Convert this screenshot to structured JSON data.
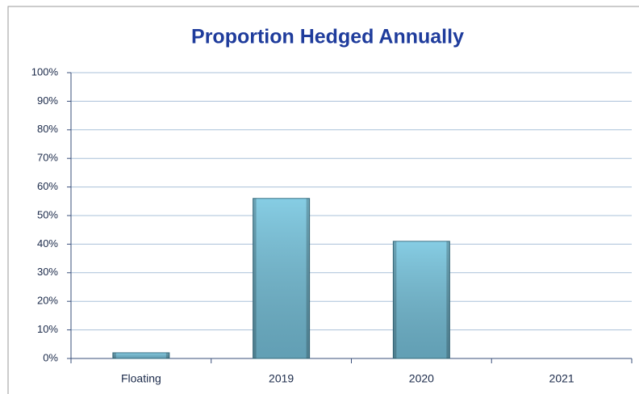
{
  "chart_data": {
    "type": "bar",
    "title": "Proportion Hedged Annually",
    "categories": [
      "Floating",
      "2019",
      "2020",
      "2021"
    ],
    "values": [
      2,
      56,
      41,
      0
    ],
    "color": "#86cde4",
    "ylim": [
      0,
      100
    ],
    "yticks": [
      {
        "value": 0,
        "label": "0%"
      },
      {
        "value": 10,
        "label": "10%"
      },
      {
        "value": 20,
        "label": "20%"
      },
      {
        "value": 30,
        "label": "30%"
      },
      {
        "value": 40,
        "label": "40%"
      },
      {
        "value": 50,
        "label": "50%"
      },
      {
        "value": 60,
        "label": "60%"
      },
      {
        "value": 70,
        "label": "70%"
      },
      {
        "value": 80,
        "label": "80%"
      },
      {
        "value": 90,
        "label": "90%"
      },
      {
        "value": 100,
        "label": "100%"
      }
    ],
    "grid": true
  }
}
